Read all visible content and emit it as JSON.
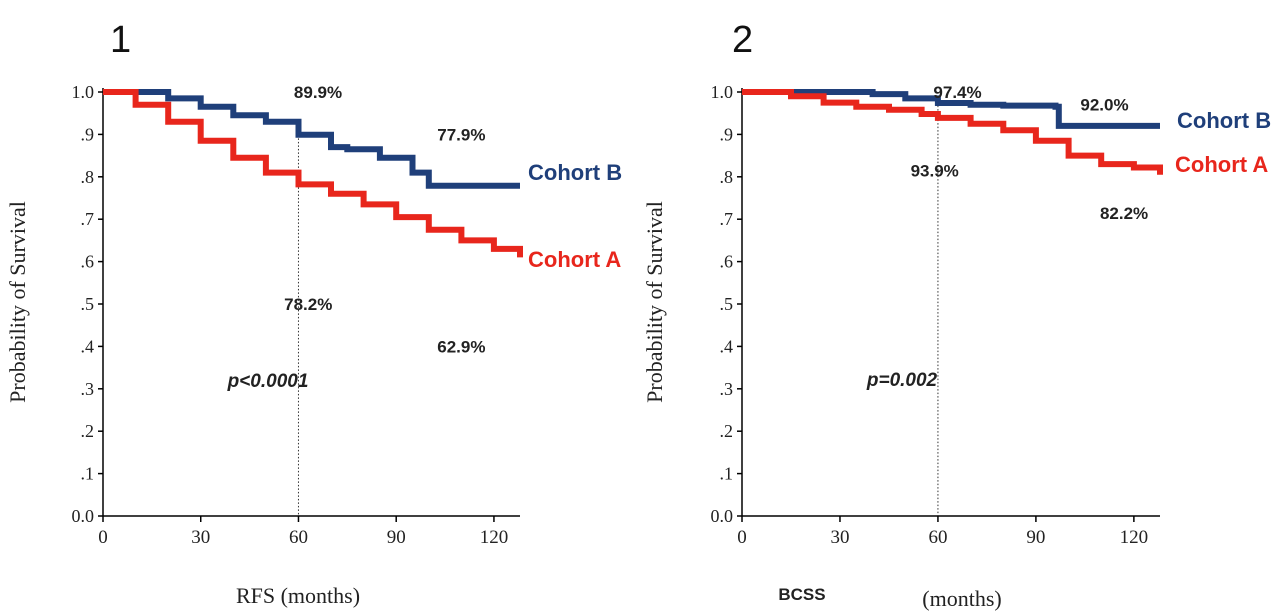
{
  "chart_data": [
    {
      "type": "line",
      "panel_label": "1",
      "xlabel": "RFS (months)",
      "ylabel": "Probability of Survival",
      "xlim": [
        0,
        128
      ],
      "ylim": [
        0,
        1.0
      ],
      "x_ticks": [
        0,
        30,
        60,
        90,
        120
      ],
      "x_tick_labels": [
        "0",
        "30",
        "60",
        "90",
        "120"
      ],
      "y_ticks": [
        0,
        0.1,
        0.2,
        0.3,
        0.4,
        0.5,
        0.6,
        0.7,
        0.8,
        0.9,
        1.0
      ],
      "y_tick_labels": [
        "0.0",
        ".1",
        ".2",
        ".3",
        ".4",
        ".5",
        ".6",
        ".7",
        ".8",
        ".9",
        "1.0"
      ],
      "reference_line_x": 60,
      "p_value_label": "p<0.0001",
      "series": [
        {
          "name": "Cohort B",
          "color": "#1f3f7a",
          "x": [
            0,
            10,
            20,
            30,
            40,
            50,
            60,
            70,
            75,
            85,
            95,
            100,
            110,
            120,
            128
          ],
          "y": [
            1.0,
            1.0,
            0.985,
            0.965,
            0.945,
            0.93,
            0.899,
            0.87,
            0.865,
            0.845,
            0.81,
            0.779,
            0.779,
            0.779,
            0.779
          ]
        },
        {
          "name": "Cohort A",
          "color": "#e8261c",
          "x": [
            0,
            10,
            20,
            30,
            40,
            50,
            60,
            70,
            80,
            90,
            100,
            110,
            120,
            128
          ],
          "y": [
            1.0,
            0.97,
            0.93,
            0.885,
            0.845,
            0.81,
            0.782,
            0.76,
            0.735,
            0.705,
            0.675,
            0.65,
            0.63,
            0.61
          ]
        }
      ],
      "annotations": [
        {
          "text": "89.9%",
          "x": 66,
          "y": 1.0
        },
        {
          "text": "77.9%",
          "x": 110,
          "y": 0.9
        },
        {
          "text": "78.2%",
          "x": 63,
          "y": 0.5
        },
        {
          "text": "62.9%",
          "x": 110,
          "y": 0.4
        }
      ]
    },
    {
      "type": "line",
      "panel_label": "2",
      "xlabel": "BCSS",
      "xlabel_unit": "(months)",
      "ylabel": "Probability of Survival",
      "xlim": [
        0,
        128
      ],
      "ylim": [
        0,
        1.0
      ],
      "x_ticks": [
        0,
        30,
        60,
        90,
        120
      ],
      "x_tick_labels": [
        "0",
        "30",
        "60",
        "90",
        "120"
      ],
      "y_ticks": [
        0,
        0.1,
        0.2,
        0.3,
        0.4,
        0.5,
        0.6,
        0.7,
        0.8,
        0.9,
        1.0
      ],
      "y_tick_labels": [
        "0.0",
        ".1",
        ".2",
        ".3",
        ".4",
        ".5",
        ".6",
        ".7",
        ".8",
        ".9",
        "1.0"
      ],
      "reference_line_x": 60,
      "p_value_label": "p=0.002",
      "series": [
        {
          "name": "Cohort B",
          "color": "#1f3f7a",
          "x": [
            0,
            20,
            40,
            50,
            60,
            70,
            80,
            96,
            97,
            110,
            120,
            128
          ],
          "y": [
            1.0,
            1.0,
            0.995,
            0.985,
            0.974,
            0.97,
            0.968,
            0.965,
            0.92,
            0.92,
            0.92,
            0.92
          ]
        },
        {
          "name": "Cohort A",
          "color": "#e8261c",
          "x": [
            0,
            15,
            25,
            35,
            45,
            55,
            60,
            70,
            80,
            90,
            100,
            110,
            120,
            128
          ],
          "y": [
            1.0,
            0.99,
            0.975,
            0.965,
            0.958,
            0.948,
            0.939,
            0.925,
            0.91,
            0.885,
            0.85,
            0.83,
            0.822,
            0.805
          ]
        }
      ],
      "annotations": [
        {
          "text": "97.4%",
          "x": 66,
          "y": 1.0
        },
        {
          "text": "92.0%",
          "x": 111,
          "y": 0.97
        },
        {
          "text": "93.9%",
          "x": 59,
          "y": 0.815
        },
        {
          "text": "82.2%",
          "x": 117,
          "y": 0.715
        }
      ]
    }
  ]
}
